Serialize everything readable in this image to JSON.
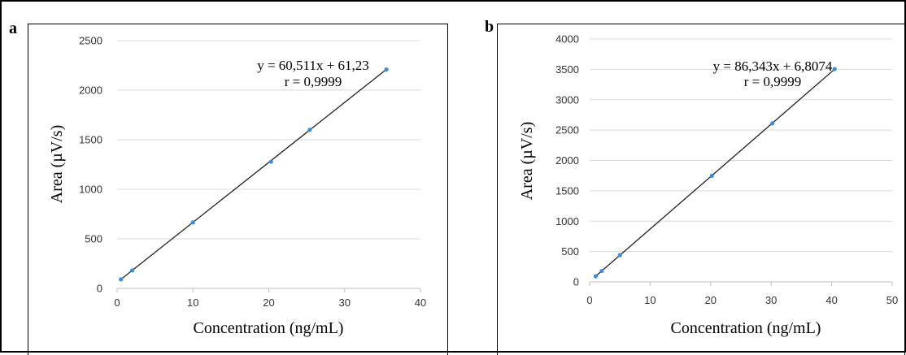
{
  "chart_data": [
    {
      "id": "a",
      "type": "scatter",
      "panel_label": "a",
      "xlabel": "Concentration (ng/mL)",
      "ylabel": "Area (µV/s)",
      "xlim": [
        0,
        40
      ],
      "ylim": [
        0,
        2500
      ],
      "xticks": [
        0,
        10,
        20,
        30,
        40
      ],
      "yticks": [
        0,
        500,
        1000,
        1500,
        2000,
        2500
      ],
      "grid": true,
      "points": [
        {
          "x": 0.5,
          "y": 91
        },
        {
          "x": 2,
          "y": 182
        },
        {
          "x": 10,
          "y": 666
        },
        {
          "x": 20.3,
          "y": 1278
        },
        {
          "x": 25.4,
          "y": 1600
        },
        {
          "x": 35.5,
          "y": 2208
        }
      ],
      "fit": {
        "slope": 60.511,
        "intercept": 61.23,
        "x_range": [
          0.5,
          35.5
        ]
      },
      "equation": "y = 60,511x + 61,23",
      "r_label": "r = 0,9999"
    },
    {
      "id": "b",
      "type": "scatter",
      "panel_label": "b",
      "xlabel": "Concentration (ng/mL)",
      "ylabel": "Area (µV/s)",
      "xlim": [
        0,
        50
      ],
      "ylim": [
        0,
        4000
      ],
      "xticks": [
        0,
        10,
        20,
        30,
        40,
        50
      ],
      "yticks": [
        0,
        500,
        1000,
        1500,
        2000,
        2500,
        3000,
        3500,
        4000
      ],
      "grid": true,
      "points": [
        {
          "x": 1,
          "y": 93
        },
        {
          "x": 2,
          "y": 180
        },
        {
          "x": 5,
          "y": 440
        },
        {
          "x": 20.2,
          "y": 1747
        },
        {
          "x": 30.2,
          "y": 2610
        },
        {
          "x": 40.5,
          "y": 3505
        }
      ],
      "fit": {
        "slope": 86.343,
        "intercept": 6.8074,
        "x_range": [
          1,
          40.5
        ]
      },
      "equation": "y = 86,343x + 6,8074",
      "r_label": "r = 0,9999"
    }
  ]
}
